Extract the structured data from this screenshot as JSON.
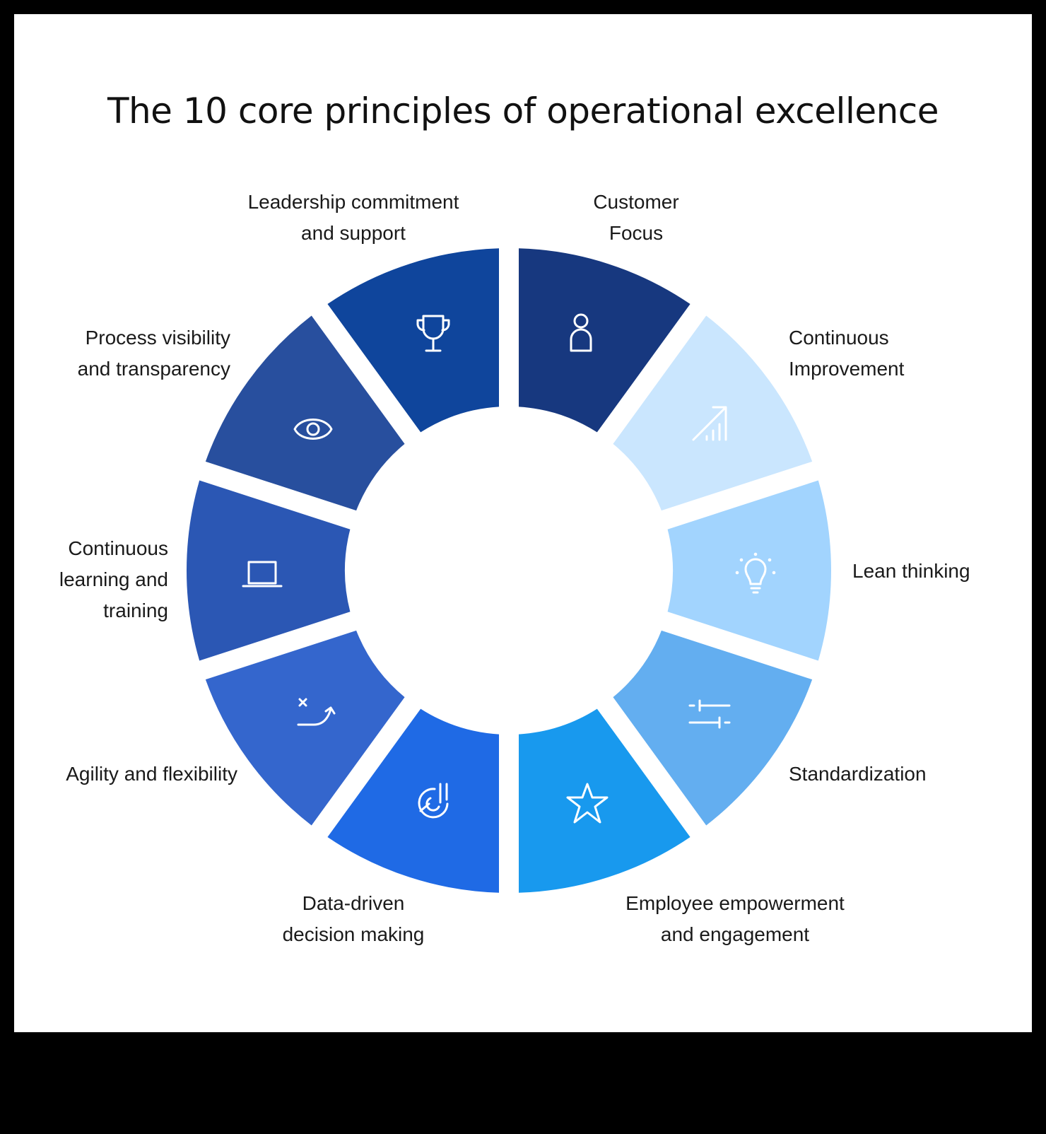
{
  "title": "The 10 core principles of operational excellence",
  "segments": [
    {
      "label": "Customer\nFocus",
      "icon": "person-icon",
      "color": "#17387f"
    },
    {
      "label": "Continuous\nImprovement",
      "icon": "growth-chart-icon",
      "color": "#cae6fe"
    },
    {
      "label": "Lean thinking",
      "icon": "lightbulb-icon",
      "color": "#a2d4fe"
    },
    {
      "label": "Standardization",
      "icon": "sliders-icon",
      "color": "#63aef0"
    },
    {
      "label": "Employee empowerment\nand engagement",
      "icon": "star-icon",
      "color": "#1899ee"
    },
    {
      "label": "Data-driven\ndecision making",
      "icon": "analytics-icon",
      "color": "#1f6ae5"
    },
    {
      "label": "Agility and flexibility",
      "icon": "pivot-arrow-icon",
      "color": "#3466cd"
    },
    {
      "label": "Continuous\nlearning and\ntraining",
      "icon": "laptop-icon",
      "color": "#2b57b4"
    },
    {
      "label": "Process visibility\nand transparency",
      "icon": "eye-icon",
      "color": "#284f9e"
    },
    {
      "label": "Leadership commitment\nand support",
      "icon": "trophy-icon",
      "color": "#0f459c"
    }
  ]
}
